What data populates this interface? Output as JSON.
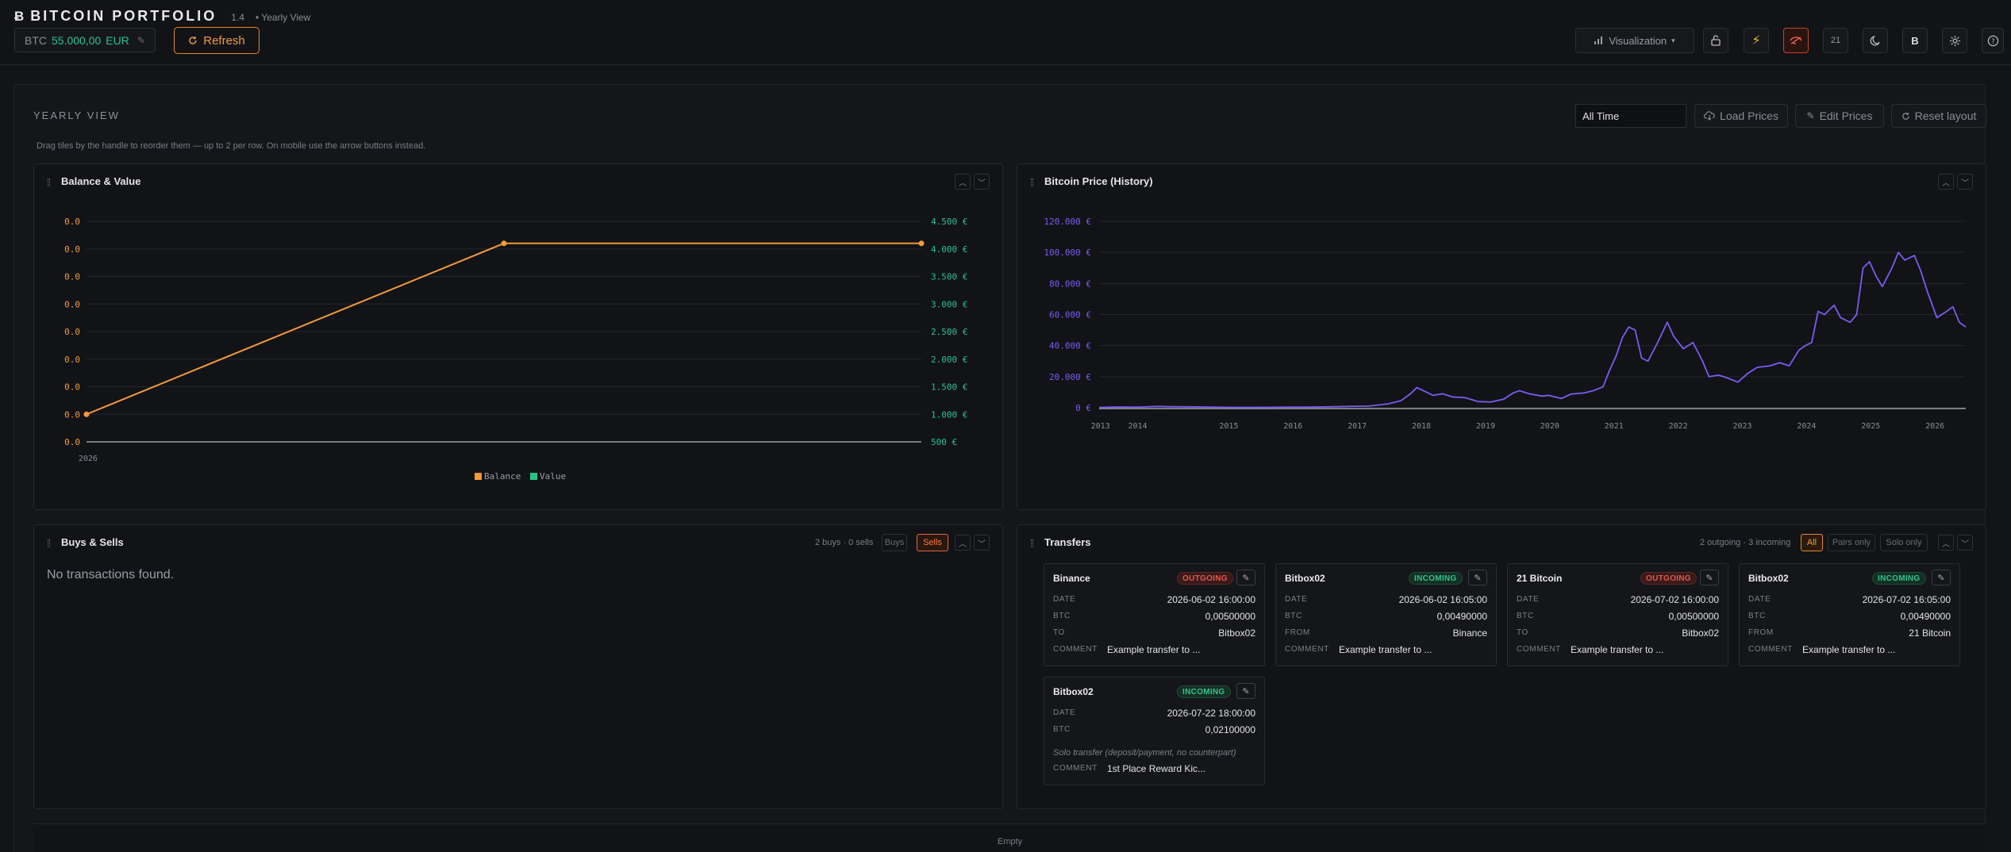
{
  "header": {
    "brand_icon": "Ƀ",
    "title": "BITCOIN PORTFOLIO",
    "version": "1.4",
    "view": "• Yearly View",
    "btc_label": "BTC",
    "btc_amount": "55.000,00",
    "currency": "EUR",
    "edit_icon": "✎",
    "refresh_label": "Refresh",
    "visualization_label": "Visualization",
    "toolbar_21": "21",
    "toolbar_b": "B"
  },
  "page": {
    "section_title": "YEARLY VIEW",
    "hint": "Drag tiles by the handle to reorder them — up to 2 per row. On mobile use the arrow buttons instead.",
    "range_value": "All Time",
    "load_prices": "Load Prices",
    "edit_prices": "Edit Prices",
    "reset_layout": "Reset layout",
    "bottom_empty": "Empty"
  },
  "tiles": {
    "balance_title": "Balance & Value",
    "price_title": "Bitcoin Price (History)",
    "buys_title": "Buys & Sells",
    "buys_empty": "No transactions found.",
    "buys_meta": "2 buys · 0 sells",
    "buys_chip": "Buys",
    "sells_chip": "Sells",
    "transfers_title": "Transfers",
    "transfers_meta": "2 outgoing · 3 incoming",
    "chip_all": "All",
    "chip_pairs": "Pairs only",
    "chip_solo": "Solo only"
  },
  "transfers": [
    {
      "name": "Binance",
      "badge": "OUTGOING",
      "date_k": "DATE",
      "date": "2026-06-02 16:00:00",
      "btc_k": "BTC",
      "btc": "0,00500000",
      "party_k": "TO",
      "party": "Bitbox02",
      "comment_k": "COMMENT",
      "comment": "Example transfer to ..."
    },
    {
      "name": "Bitbox02",
      "badge": "INCOMING",
      "date_k": "DATE",
      "date": "2026-06-02 16:05:00",
      "btc_k": "BTC",
      "btc": "0,00490000",
      "party_k": "FROM",
      "party": "Binance",
      "comment_k": "COMMENT",
      "comment": "Example transfer to ..."
    },
    {
      "name": "21 Bitcoin",
      "badge": "OUTGOING",
      "date_k": "DATE",
      "date": "2026-07-02 16:00:00",
      "btc_k": "BTC",
      "btc": "0,00500000",
      "party_k": "TO",
      "party": "Bitbox02",
      "comment_k": "COMMENT",
      "comment": "Example transfer to ..."
    },
    {
      "name": "Bitbox02",
      "badge": "INCOMING",
      "date_k": "DATE",
      "date": "2026-07-02 16:05:00",
      "btc_k": "BTC",
      "btc": "0,00490000",
      "party_k": "FROM",
      "party": "21 Bitcoin",
      "comment_k": "COMMENT",
      "comment": "Example transfer to ..."
    },
    {
      "name": "Bitbox02",
      "badge": "INCOMING",
      "date_k": "DATE",
      "date": "2026-07-22 18:00:00",
      "btc_k": "BTC",
      "btc": "0,02100000",
      "solo": "Solo transfer (deposit/payment, no counterpart)",
      "comment_k": "COMMENT",
      "comment": "1st Place Reward Kic..."
    }
  ],
  "colors": {
    "accent": "#f39a3a",
    "green": "#26c48a",
    "purple": "#7b5cf0",
    "red": "#e0594f"
  },
  "chart_data": [
    {
      "type": "line",
      "title": "Balance & Value",
      "x": [
        "2026"
      ],
      "left_ticks": [
        "0.0",
        "0.0",
        "0.0",
        "0.0",
        "0.0",
        "0.0",
        "0.0",
        "0.0",
        "0.0"
      ],
      "right_ticks": [
        "4.500 €",
        "4.000 €",
        "3.500 €",
        "3.000 €",
        "2.500 €",
        "2.000 €",
        "1.500 €",
        "1.000 €",
        "500 €"
      ],
      "ylim_right": [
        500,
        4500
      ],
      "series": [
        {
          "name": "Balance",
          "color": "#f39a3a",
          "points": [
            [
              0,
              1000
            ],
            [
              0.5,
              4100
            ],
            [
              1.0,
              4100
            ]
          ]
        },
        {
          "name": "Value",
          "color": "#26c48a",
          "points": [
            [
              0,
              500
            ],
            [
              1.0,
              500
            ]
          ]
        }
      ],
      "legend": "bottom"
    },
    {
      "type": "line",
      "title": "Bitcoin Price (History)",
      "x_ticks": [
        "2013",
        "2014",
        "2015",
        "2016",
        "2017",
        "2018",
        "2019",
        "2020",
        "2021",
        "2022",
        "2023",
        "2024",
        "2025",
        "2026"
      ],
      "y_ticks": [
        "120.000 €",
        "100.000 €",
        "80.000 €",
        "60.000 €",
        "40.000 €",
        "20.000 €",
        "0 €"
      ],
      "ylim": [
        0,
        120000
      ],
      "xlim": [
        2013.0,
        2026.5
      ],
      "series": [
        {
          "name": "Price",
          "color": "#7b5cf0",
          "points": [
            [
              2013.0,
              200
            ],
            [
              2013.3,
              500
            ],
            [
              2013.6,
              400
            ],
            [
              2013.9,
              900
            ],
            [
              2014.1,
              700
            ],
            [
              2014.4,
              600
            ],
            [
              2014.7,
              450
            ],
            [
              2015.0,
              250
            ],
            [
              2015.5,
              260
            ],
            [
              2015.9,
              400
            ],
            [
              2016.3,
              420
            ],
            [
              2016.6,
              650
            ],
            [
              2016.9,
              900
            ],
            [
              2017.2,
              1100
            ],
            [
              2017.5,
              2500
            ],
            [
              2017.7,
              4500
            ],
            [
              2017.85,
              9000
            ],
            [
              2017.95,
              13000
            ],
            [
              2018.05,
              11000
            ],
            [
              2018.2,
              8000
            ],
            [
              2018.35,
              9000
            ],
            [
              2018.5,
              7000
            ],
            [
              2018.7,
              6500
            ],
            [
              2018.9,
              4000
            ],
            [
              2019.1,
              3700
            ],
            [
              2019.3,
              5500
            ],
            [
              2019.45,
              9500
            ],
            [
              2019.55,
              11000
            ],
            [
              2019.7,
              9000
            ],
            [
              2019.9,
              7500
            ],
            [
              2020.0,
              8000
            ],
            [
              2020.2,
              6000
            ],
            [
              2020.35,
              8800
            ],
            [
              2020.55,
              9500
            ],
            [
              2020.7,
              11000
            ],
            [
              2020.85,
              13500
            ],
            [
              2020.95,
              24000
            ],
            [
              2021.05,
              33000
            ],
            [
              2021.15,
              45000
            ],
            [
              2021.25,
              52000
            ],
            [
              2021.35,
              50000
            ],
            [
              2021.45,
              32000
            ],
            [
              2021.55,
              30000
            ],
            [
              2021.7,
              42000
            ],
            [
              2021.85,
              55000
            ],
            [
              2021.95,
              46000
            ],
            [
              2022.1,
              38000
            ],
            [
              2022.25,
              42000
            ],
            [
              2022.4,
              30000
            ],
            [
              2022.5,
              20000
            ],
            [
              2022.65,
              21000
            ],
            [
              2022.8,
              19000
            ],
            [
              2022.95,
              16500
            ],
            [
              2023.1,
              22000
            ],
            [
              2023.25,
              26000
            ],
            [
              2023.45,
              27000
            ],
            [
              2023.6,
              29000
            ],
            [
              2023.75,
              27000
            ],
            [
              2023.9,
              37000
            ],
            [
              2024.0,
              40000
            ],
            [
              2024.1,
              42000
            ],
            [
              2024.2,
              62000
            ],
            [
              2024.3,
              60000
            ],
            [
              2024.45,
              66000
            ],
            [
              2024.55,
              58000
            ],
            [
              2024.7,
              55000
            ],
            [
              2024.8,
              60000
            ],
            [
              2024.9,
              90000
            ],
            [
              2025.0,
              94000
            ],
            [
              2025.1,
              85000
            ],
            [
              2025.2,
              78000
            ],
            [
              2025.35,
              90000
            ],
            [
              2025.45,
              100000
            ],
            [
              2025.55,
              95000
            ],
            [
              2025.7,
              98000
            ],
            [
              2025.8,
              88000
            ],
            [
              2025.9,
              75000
            ],
            [
              2026.05,
              58000
            ],
            [
              2026.2,
              62000
            ],
            [
              2026.3,
              65000
            ],
            [
              2026.4,
              55000
            ],
            [
              2026.5,
              52000
            ]
          ]
        }
      ]
    }
  ]
}
